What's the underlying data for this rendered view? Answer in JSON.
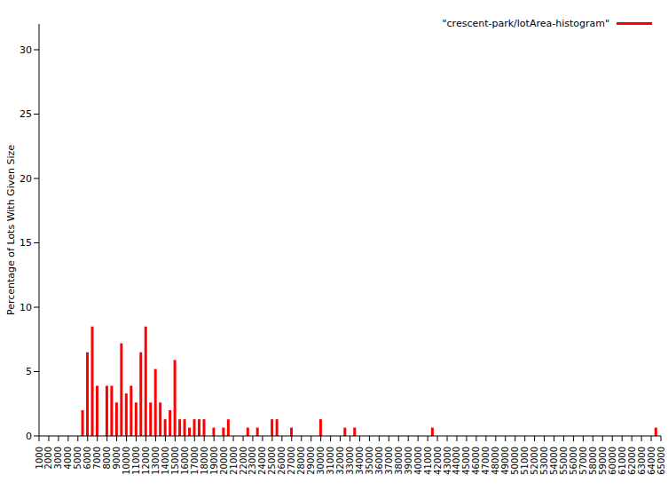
{
  "chart_data": {
    "type": "bar",
    "y_label": "Percentage of Lots With Given Size",
    "x": [
      5500,
      6000,
      6500,
      7000,
      8000,
      8500,
      9000,
      9500,
      10000,
      10500,
      11000,
      11500,
      12000,
      12500,
      13000,
      13500,
      14000,
      14500,
      15000,
      15500,
      16000,
      16500,
      17000,
      17500,
      18000,
      19000,
      20000,
      20500,
      22500,
      23500,
      25000,
      25500,
      27000,
      30000,
      32500,
      33500,
      41500,
      64500
    ],
    "series": [
      {
        "name": "\"crescent-park/lotArea-histogram\"",
        "color": "#ff0000",
        "values": [
          2.0,
          6.5,
          8.5,
          3.9,
          3.9,
          3.9,
          2.6,
          7.2,
          3.3,
          3.9,
          2.6,
          6.5,
          8.5,
          2.6,
          5.2,
          2.6,
          1.3,
          2.0,
          5.9,
          1.3,
          1.3,
          0.65,
          1.3,
          1.3,
          1.3,
          0.65,
          0.65,
          1.3,
          0.65,
          0.65,
          1.3,
          1.3,
          0.65,
          1.3,
          0.65,
          0.65,
          0.65,
          0.65
        ]
      }
    ],
    "xlim": [
      1000,
      65000
    ],
    "xticks": [
      1000,
      2000,
      3000,
      4000,
      5000,
      6000,
      7000,
      8000,
      9000,
      10000,
      11000,
      12000,
      13000,
      14000,
      15000,
      16000,
      17000,
      18000,
      19000,
      20000,
      21000,
      22000,
      23000,
      24000,
      25000,
      26000,
      27000,
      28000,
      29000,
      30000,
      31000,
      32000,
      33000,
      34000,
      35000,
      36000,
      37000,
      38000,
      39000,
      40000,
      41000,
      42000,
      43000,
      44000,
      45000,
      46000,
      47000,
      48000,
      49000,
      50000,
      51000,
      52000,
      53000,
      54000,
      55000,
      56000,
      57000,
      58000,
      59000,
      60000,
      61000,
      62000,
      63000,
      64000,
      65000
    ],
    "ylim": [
      0,
      32
    ],
    "yticks": [
      0,
      5,
      10,
      15,
      20,
      25,
      30
    ],
    "grid": false,
    "legend": "top-right"
  }
}
